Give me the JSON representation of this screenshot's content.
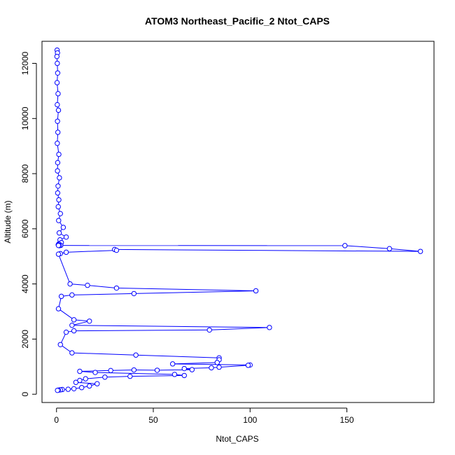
{
  "chart_data": {
    "type": "scatter",
    "title": "ATOM3 Northeast_Pacific_2 Ntot_CAPS",
    "xlabel": "Ntot_CAPS",
    "ylabel": "Altitude (m)",
    "xlim": [
      -7.5,
      195
    ],
    "ylim": [
      -300,
      12800
    ],
    "x_ticks": [
      0,
      50,
      100,
      150
    ],
    "y_ticks": [
      0,
      2000,
      4000,
      6000,
      8000,
      10000,
      12000
    ],
    "grid": false,
    "legend": "none",
    "marker": "open-circle",
    "connected": true,
    "colors": {
      "series": "#0000ff",
      "axis": "#000000"
    },
    "series": [
      {
        "x": [
          0.3,
          0.5,
          0.2,
          0.4,
          0.6,
          0.3,
          0.8,
          0.4,
          1.0,
          0.5,
          0.7,
          0.4,
          1.2,
          0.6,
          0.5,
          1.5,
          0.8,
          0.6,
          1.2,
          0.9,
          2.0,
          1.1,
          3.5,
          1.4,
          5.0,
          1.8,
          2.5,
          1.2,
          0.9,
          2.2,
          1.5,
          1.0,
          149,
          172,
          188,
          30,
          31,
          5,
          2.0,
          1.0,
          7,
          16,
          31,
          103,
          40,
          8,
          2.5,
          1.0,
          9,
          17,
          8,
          110,
          79,
          9,
          5,
          2.0,
          8,
          41,
          84,
          84,
          83,
          60,
          100,
          99,
          84,
          80,
          66,
          70,
          52,
          40,
          28,
          12,
          20,
          61,
          66,
          38,
          25,
          15,
          12,
          10,
          21,
          17,
          13,
          9,
          6,
          3,
          2.0,
          1.0,
          0.5
        ],
        "y": [
          12480,
          12380,
          12250,
          12000,
          11650,
          11300,
          10900,
          10500,
          10300,
          9900,
          9500,
          9100,
          8700,
          8400,
          8100,
          7850,
          7550,
          7300,
          7050,
          6800,
          6550,
          6300,
          6050,
          5850,
          5700,
          5600,
          5500,
          5450,
          5420,
          5400,
          5390,
          5395,
          5390,
          5280,
          5180,
          5250,
          5220,
          5150,
          5100,
          5080,
          4000,
          3950,
          3850,
          3750,
          3650,
          3600,
          3550,
          3100,
          2700,
          2650,
          2500,
          2420,
          2330,
          2300,
          2250,
          1800,
          1500,
          1420,
          1320,
          1250,
          1150,
          1100,
          1060,
          1050,
          980,
          960,
          930,
          890,
          870,
          880,
          860,
          830,
          790,
          720,
          680,
          650,
          620,
          560,
          500,
          430,
          380,
          300,
          240,
          200,
          180,
          170,
          160,
          150,
          140
        ]
      }
    ]
  }
}
